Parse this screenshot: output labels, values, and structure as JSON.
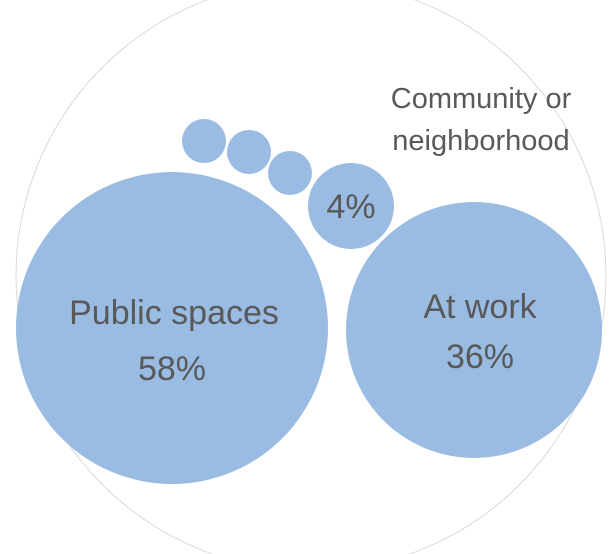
{
  "chart_data": {
    "type": "packed-bubble",
    "title": "",
    "colors": {
      "bubble": "#9ABCE2",
      "outline": "#D9D9D9",
      "text": "#595959"
    },
    "bubbles": [
      {
        "category": "Public spaces",
        "value": 58,
        "value_label": "58%"
      },
      {
        "category": "At work",
        "value": 36,
        "value_label": "36%"
      },
      {
        "category": "Community or neighborhood",
        "category_lines": [
          "Community or",
          "neighborhood"
        ],
        "value": 4,
        "value_label": "4%"
      },
      {
        "category": "",
        "value": 1,
        "value_label": ""
      },
      {
        "category": "",
        "value": 1,
        "value_label": ""
      },
      {
        "category": "",
        "value": 1,
        "value_label": ""
      }
    ]
  }
}
